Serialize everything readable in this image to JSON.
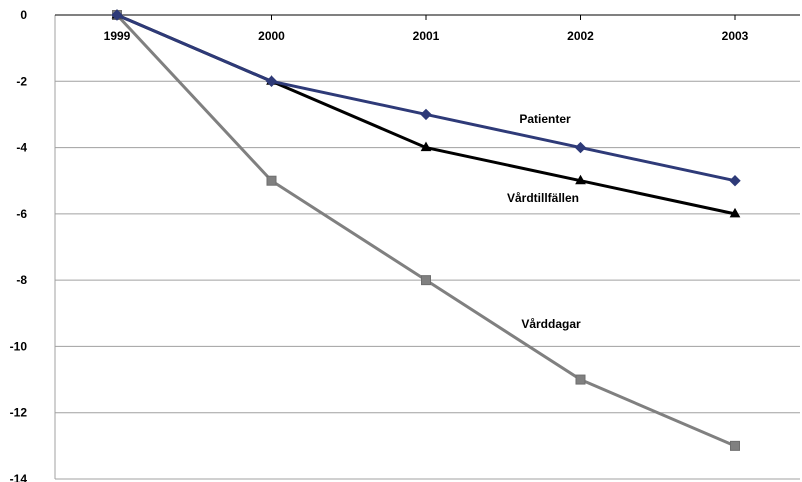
{
  "chart_data": {
    "type": "line",
    "categories": [
      "1999",
      "2000",
      "2001",
      "2002",
      "2003"
    ],
    "ylim": [
      -14,
      0
    ],
    "yticks": [
      "0",
      "-2",
      "-4",
      "-6",
      "-8",
      "-10",
      "-12",
      "-14"
    ],
    "grid": true,
    "legend": "inline labels near lines",
    "series": [
      {
        "name": "Patienter",
        "values": [
          0,
          -2,
          -3,
          -4,
          -5
        ],
        "color": "#2E3A78",
        "marker": "diamond-icon"
      },
      {
        "name": "Vårdtillfällen",
        "values": [
          0,
          -2,
          -4,
          -5,
          -6
        ],
        "color": "#000000",
        "marker": "triangle-icon"
      },
      {
        "name": "Vårddagar",
        "values": [
          0,
          -5,
          -8,
          -11,
          -13
        ],
        "color": "#808080",
        "marker": "square-icon"
      }
    ]
  }
}
